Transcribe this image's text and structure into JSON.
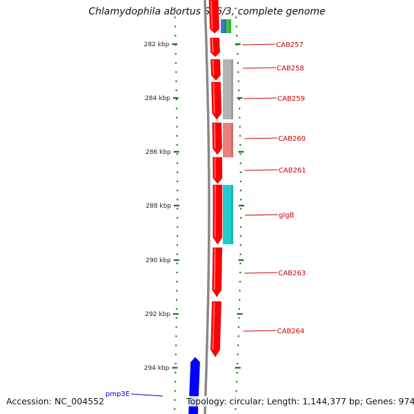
{
  "title": "Chlamydophila abortus S26/3, complete genome",
  "accession": "Accession: NC_004552",
  "footer": "Topology: circular; Length: 1,144,377 bp; Genes: 974",
  "colors": {
    "forward_gene": "#ff0000",
    "reverse_gene": "#0000ff",
    "backbone": "#888888",
    "tick": "#1a7a1a",
    "label_forward": "#cc0000",
    "label_reverse": "#0000cc",
    "track_gray": "#b4b4b4",
    "track_pink": "#e88080",
    "track_cyan": "#22cccc",
    "track_blue": "#4477cc",
    "track_green": "#33cc33"
  },
  "ruler": [
    {
      "label": "282 kbp"
    },
    {
      "label": "284 kbp"
    },
    {
      "label": "286 kbp"
    },
    {
      "label": "288 kbp"
    },
    {
      "label": "290 kbp"
    },
    {
      "label": "292 kbp"
    },
    {
      "label": "294 kbp"
    }
  ],
  "genes": [
    {
      "id": "top",
      "label": "",
      "strand": "+"
    },
    {
      "id": "CAB257",
      "label": "CAB257",
      "strand": "+"
    },
    {
      "id": "CAB258",
      "label": "CAB258",
      "strand": "+"
    },
    {
      "id": "CAB259",
      "label": "CAB259",
      "strand": "+"
    },
    {
      "id": "CAB260",
      "label": "CAB260",
      "strand": "+"
    },
    {
      "id": "CAB261",
      "label": "CAB261",
      "strand": "+"
    },
    {
      "id": "glgB",
      "label": "glgB",
      "strand": "+"
    },
    {
      "id": "CAB263",
      "label": "CAB263",
      "strand": "+"
    },
    {
      "id": "CAB264",
      "label": "CAB264",
      "strand": "+"
    },
    {
      "id": "pmp3E",
      "label": "pmp3E",
      "strand": "-"
    }
  ],
  "feature_tracks": [
    {
      "id": "top-blue",
      "color_key": "track_blue"
    },
    {
      "id": "top-green",
      "color_key": "track_green"
    },
    {
      "id": "gray",
      "color_key": "track_gray"
    },
    {
      "id": "pink",
      "color_key": "track_pink"
    },
    {
      "id": "cyan",
      "color_key": "track_cyan"
    }
  ]
}
